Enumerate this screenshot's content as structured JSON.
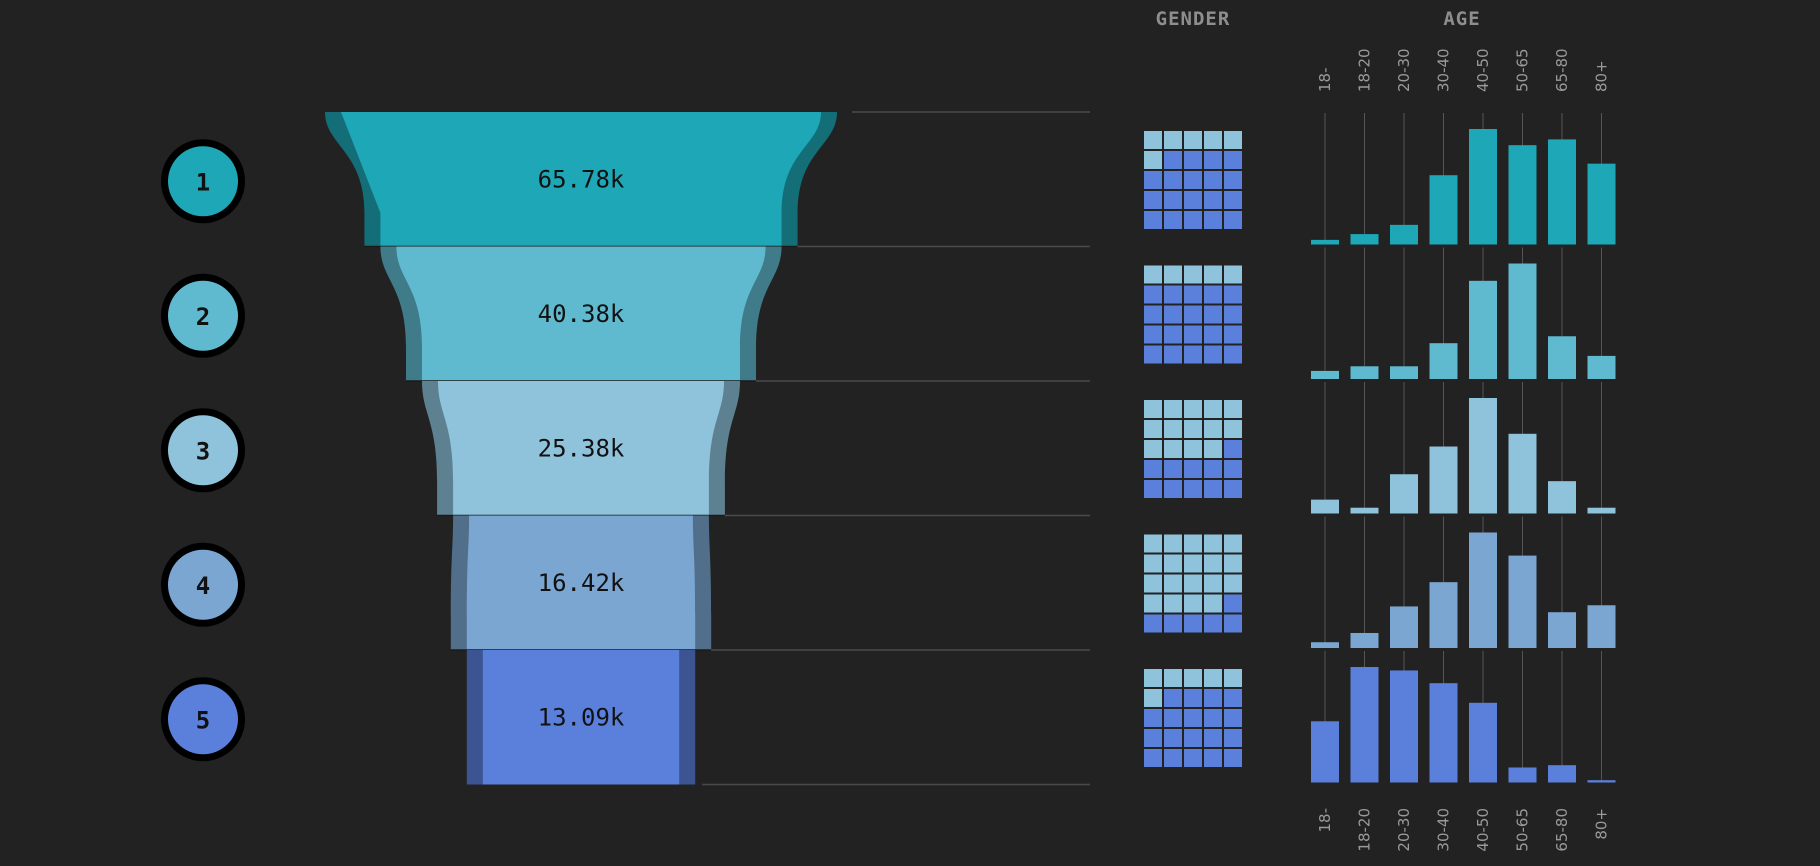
{
  "headers": {
    "gender": "GENDER",
    "age": "AGE"
  },
  "colors": {
    "background": "#222222",
    "stages": [
      "#1ea7b6",
      "#5fbacf",
      "#8fc3dc",
      "#7aa6d1",
      "#5b80dc"
    ],
    "gender_female": "#8fc3dc",
    "gender_male": "#5b80dc"
  },
  "chart_data": {
    "type": "funnel",
    "stages": [
      {
        "step": "1",
        "value": 65.78,
        "label": "65.78k"
      },
      {
        "step": "2",
        "value": 40.38,
        "label": "40.38k"
      },
      {
        "step": "3",
        "value": 25.38,
        "label": "25.38k"
      },
      {
        "step": "4",
        "value": 16.42,
        "label": "16.42k"
      },
      {
        "step": "5",
        "value": 13.09,
        "label": "13.09k"
      }
    ],
    "gender": {
      "type": "waffle",
      "grid": [
        5,
        5
      ],
      "female_cells": [
        6,
        5,
        14,
        19,
        6
      ]
    },
    "age": {
      "type": "bar",
      "categories": [
        "18-",
        "18-20",
        "20-30",
        "30-40",
        "40-50",
        "50-65",
        "65-80",
        "80+"
      ],
      "series": [
        {
          "values": [
            4,
            9,
            17,
            60,
            100,
            86,
            91,
            70
          ]
        },
        {
          "values": [
            7,
            11,
            11,
            31,
            85,
            100,
            37,
            20
          ]
        },
        {
          "values": [
            12,
            5,
            34,
            58,
            100,
            69,
            28,
            5
          ]
        },
        {
          "values": [
            5,
            13,
            36,
            57,
            100,
            80,
            31,
            37
          ]
        },
        {
          "values": [
            53,
            100,
            97,
            86,
            69,
            13,
            15,
            2
          ]
        }
      ]
    }
  }
}
